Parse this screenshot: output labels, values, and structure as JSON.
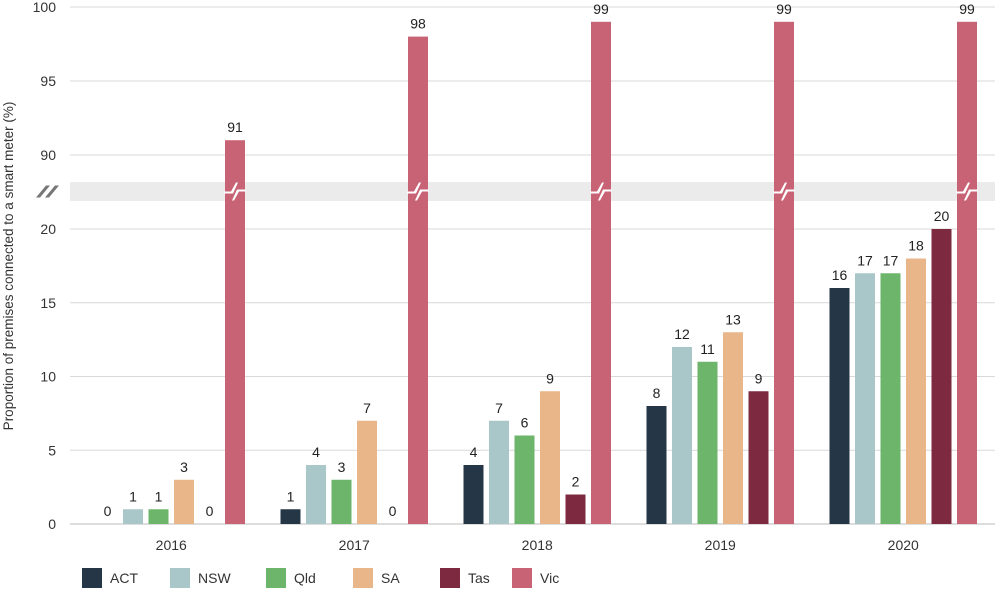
{
  "chart_data": {
    "type": "bar",
    "title": "",
    "xlabel": "",
    "ylabel": "Proportion of premises connected to a smart meter (%)",
    "axis_break": {
      "lower_range": [
        0,
        20
      ],
      "upper_range": [
        90,
        100
      ]
    },
    "y_ticks": [
      "0",
      "5",
      "10",
      "15",
      "20",
      "90",
      "95",
      "100"
    ],
    "y_tick_values": [
      0,
      5,
      10,
      15,
      20,
      90,
      95,
      100
    ],
    "grid": true,
    "legend_position": "bottom-left",
    "categories": [
      "2016",
      "2017",
      "2018",
      "2019",
      "2020"
    ],
    "series": [
      {
        "name": "ACT",
        "color": "#253746",
        "values": [
          0,
          1,
          4,
          8,
          16
        ]
      },
      {
        "name": "NSW",
        "color": "#a9c6c9",
        "values": [
          1,
          4,
          7,
          12,
          17
        ]
      },
      {
        "name": "Qld",
        "color": "#6db56a",
        "values": [
          1,
          3,
          6,
          11,
          17
        ]
      },
      {
        "name": "SA",
        "color": "#e8b688",
        "values": [
          3,
          7,
          9,
          13,
          18
        ]
      },
      {
        "name": "Tas",
        "color": "#7d2a40",
        "values": [
          0,
          0,
          2,
          9,
          20
        ]
      },
      {
        "name": "Vic",
        "color": "#c86375",
        "values": [
          91,
          98,
          99,
          99,
          99
        ]
      }
    ]
  }
}
